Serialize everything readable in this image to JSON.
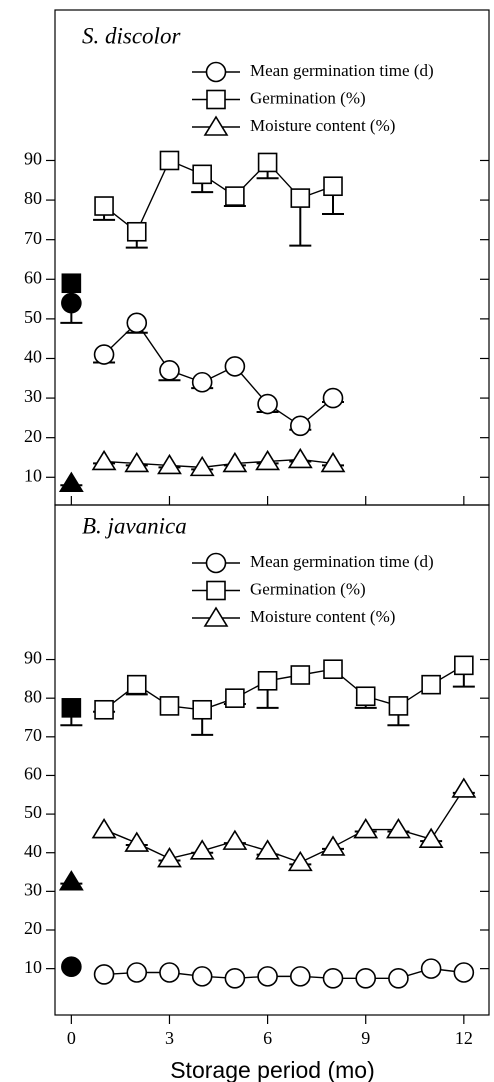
{
  "chart_data": [
    {
      "type": "line",
      "title": "S. discolor",
      "x": [
        1,
        2,
        3,
        4,
        5,
        6,
        7,
        8
      ],
      "control_x": 0,
      "series": [
        {
          "name": "Mean germination time (d)",
          "marker": "circle",
          "color": "#000000",
          "values": [
            41,
            49,
            37,
            34,
            38,
            28.5,
            23,
            30
          ],
          "errors": [
            2,
            2.5,
            2.5,
            1.5,
            0,
            2,
            1,
            1
          ],
          "control": 54,
          "control_error": 5
        },
        {
          "name": "Germination (%)",
          "marker": "square",
          "color": "#000000",
          "values": [
            78.5,
            72,
            90,
            86.5,
            81,
            89.5,
            80.5,
            83.5
          ],
          "errors": [
            3.5,
            4,
            0,
            4.5,
            2.5,
            4,
            12,
            7
          ],
          "control": 59,
          "control_error": 0
        },
        {
          "name": "Moisture content (%)",
          "marker": "triangle",
          "color": "#000000",
          "values": [
            14,
            13.5,
            13,
            12.5,
            13.5,
            14,
            14.5,
            13.5
          ],
          "errors": [
            0.5,
            0.5,
            0.5,
            0.5,
            0.5,
            0.5,
            0.5,
            0.5
          ],
          "control": 8.5,
          "control_error": 0.5
        }
      ],
      "xlim": [
        -0.5,
        12.8
      ],
      "xticks": [
        0,
        3,
        6,
        9,
        12
      ],
      "ylim": [
        3,
        128
      ],
      "yticks": [
        10,
        20,
        30,
        40,
        50,
        60,
        70,
        80,
        90
      ]
    },
    {
      "type": "line",
      "title": "B. javanica",
      "x": [
        1,
        2,
        3,
        4,
        5,
        6,
        7,
        8,
        9,
        10,
        11,
        12
      ],
      "control_x": 0,
      "series": [
        {
          "name": "Mean germination time (d)",
          "marker": "circle",
          "color": "#000000",
          "values": [
            8.5,
            9,
            9,
            8,
            7.5,
            8,
            8,
            7.5,
            7.5,
            7.5,
            10,
            9
          ],
          "errors": [
            0,
            0,
            0,
            0,
            0,
            0,
            0,
            0,
            0,
            0,
            0,
            0
          ],
          "control": 10.5,
          "control_error": 0
        },
        {
          "name": "Germination (%)",
          "marker": "square",
          "color": "#000000",
          "values": [
            77,
            83.5,
            78,
            77,
            80,
            84.5,
            86,
            87.5,
            80.5,
            78,
            83.5,
            88.5
          ],
          "errors": [
            0.5,
            2.5,
            0,
            6.5,
            1.5,
            7,
            0,
            0,
            3,
            5,
            0,
            5.5
          ],
          "control": 77.5,
          "control_error": 4.5
        },
        {
          "name": "Moisture content (%)",
          "marker": "triangle",
          "color": "#000000",
          "values": [
            46,
            42.5,
            38.5,
            40.5,
            43,
            40.5,
            37.5,
            41.5,
            46,
            46,
            43.5,
            56.5
          ],
          "errors": [
            2,
            0.5,
            0.5,
            0.5,
            0.5,
            1,
            0.5,
            0.5,
            0.5,
            0.5,
            0.5,
            1
          ],
          "control": 32.5,
          "control_error": 0.5
        }
      ],
      "xlabel": "Storage period (mo)",
      "xlim": [
        -0.5,
        12.8
      ],
      "xticks": [
        0,
        3,
        6,
        9,
        12
      ],
      "ylim": [
        -2,
        130
      ],
      "yticks": [
        10,
        20,
        30,
        40,
        50,
        60,
        70,
        80,
        90
      ]
    }
  ]
}
